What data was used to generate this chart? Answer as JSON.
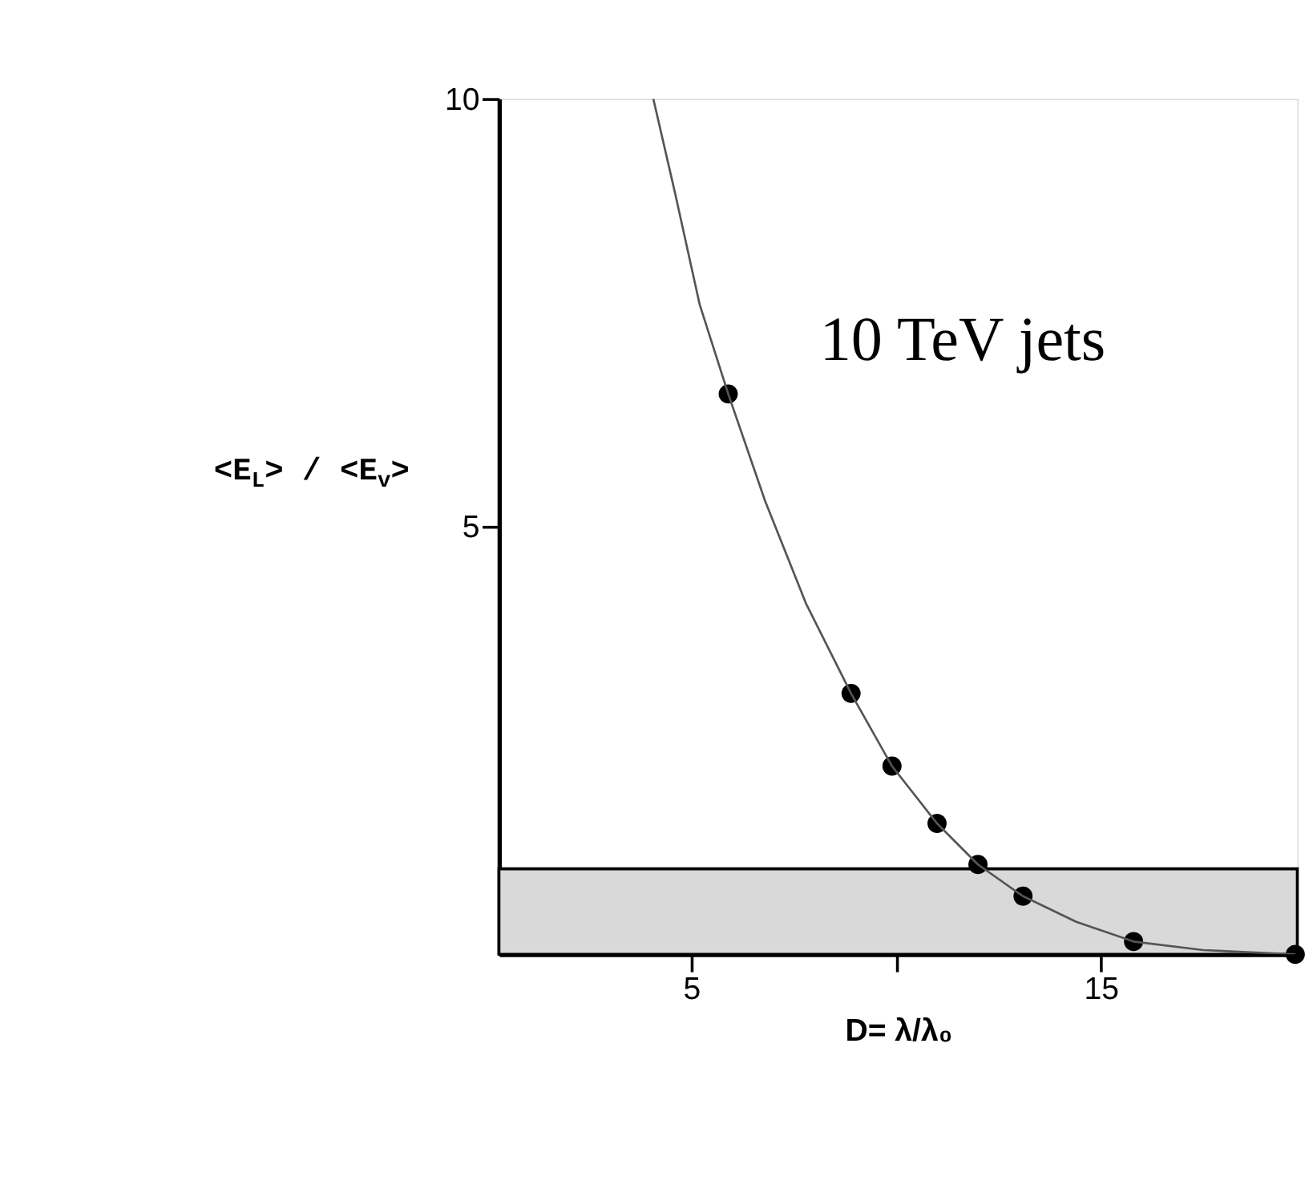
{
  "chart_data": {
    "type": "scatter",
    "xlabel": "D= λ/λ₀",
    "ylabel": "<E$_{L}$> / <E$_{v}$>",
    "annotations": [
      "10 TeV jets"
    ],
    "xlim": [
      0.3,
      19.8
    ],
    "xticks": [
      5,
      {
        "value": 10,
        "label": null
      },
      15
    ],
    "ylim": [
      0,
      10
    ],
    "yticks": [
      5,
      10
    ],
    "grid": false,
    "bands": [
      {
        "axis": "y",
        "from": 0,
        "to": 1.0,
        "label": null,
        "color": "#d9d9d9"
      }
    ],
    "series": [
      {
        "marker": "circle",
        "color": "#000000",
        "x": [
          5.9,
          8.9,
          9.9,
          11.0,
          12.0,
          13.1,
          15.8,
          19.75
        ],
        "values": [
          6.55,
          3.05,
          2.2,
          1.53,
          1.05,
          0.68,
          0.15,
          0.0
        ]
      },
      {
        "type": "line",
        "marker": "none",
        "color": "#555555",
        "line_style": "solid",
        "x": [
          4.07,
          4.6,
          5.2,
          5.9,
          6.8,
          7.8,
          8.9,
          9.9,
          11.0,
          12.0,
          13.1,
          14.4,
          15.8,
          17.5,
          19.75
        ],
        "values": [
          10,
          8.9,
          7.6,
          6.55,
          5.3,
          4.1,
          3.05,
          2.2,
          1.53,
          1.05,
          0.68,
          0.38,
          0.15,
          0.05,
          0.0
        ]
      }
    ]
  }
}
